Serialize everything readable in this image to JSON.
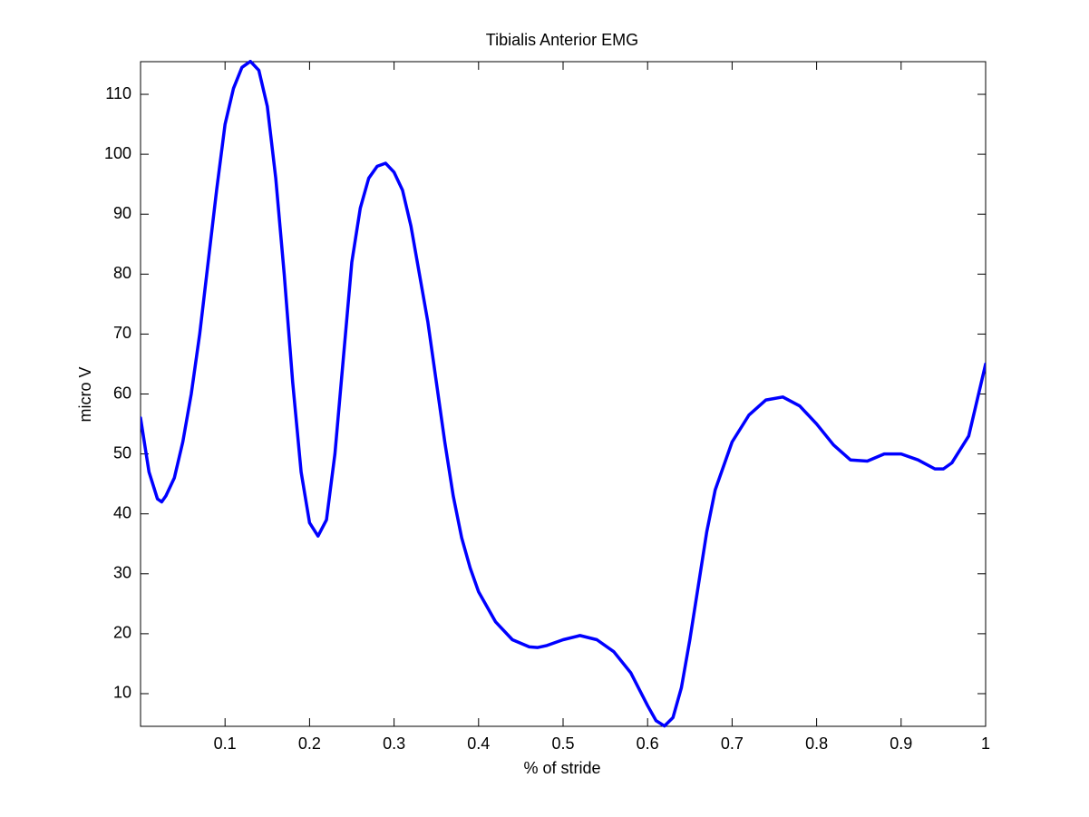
{
  "chart_data": {
    "type": "line",
    "title": "Tibialis Anterior EMG",
    "xlabel": "% of stride",
    "ylabel": "micro V",
    "x": [
      0,
      0.01,
      0.02,
      0.025,
      0.03,
      0.04,
      0.05,
      0.06,
      0.07,
      0.08,
      0.09,
      0.1,
      0.11,
      0.12,
      0.13,
      0.14,
      0.15,
      0.16,
      0.17,
      0.18,
      0.19,
      0.2,
      0.21,
      0.22,
      0.23,
      0.24,
      0.25,
      0.26,
      0.27,
      0.28,
      0.29,
      0.3,
      0.31,
      0.32,
      0.33,
      0.34,
      0.35,
      0.36,
      0.37,
      0.38,
      0.39,
      0.4,
      0.42,
      0.44,
      0.46,
      0.47,
      0.48,
      0.5,
      0.52,
      0.54,
      0.56,
      0.58,
      0.6,
      0.61,
      0.62,
      0.63,
      0.64,
      0.65,
      0.66,
      0.67,
      0.68,
      0.7,
      0.72,
      0.74,
      0.76,
      0.78,
      0.8,
      0.82,
      0.84,
      0.86,
      0.88,
      0.9,
      0.92,
      0.94,
      0.95,
      0.96,
      0.98,
      1
    ],
    "series": [
      {
        "name": "Tibialis Anterior",
        "color": "#0000ff",
        "values": [
          56,
          47,
          42.5,
          42,
          43,
          46,
          52,
          60,
          70,
          82,
          94,
          105,
          111,
          114.5,
          115.5,
          114,
          108,
          96,
          80,
          62,
          47,
          38.5,
          36.3,
          39,
          50,
          66,
          82,
          91,
          96,
          98,
          98.5,
          97,
          94,
          88,
          80,
          72,
          62,
          52,
          43,
          36,
          31,
          27,
          22,
          19,
          17.8,
          17.7,
          18,
          19,
          19.7,
          19,
          17,
          13.5,
          8,
          5.5,
          4.6,
          6,
          11,
          19,
          28,
          37,
          44,
          52,
          56.5,
          59,
          59.5,
          58,
          55,
          51.5,
          49,
          48.8,
          50,
          50,
          49,
          47.5,
          47.5,
          48.5,
          53,
          65
        ]
      }
    ],
    "xlim": [
      0,
      1
    ],
    "ylim": [
      4.55,
      115.45
    ],
    "xticks": [
      0.1,
      0.2,
      0.3,
      0.4,
      0.5,
      0.6,
      0.7,
      0.8,
      0.9,
      1
    ],
    "yticks": [
      10,
      20,
      30,
      40,
      50,
      60,
      70,
      80,
      90,
      100,
      110
    ],
    "grid": false
  }
}
